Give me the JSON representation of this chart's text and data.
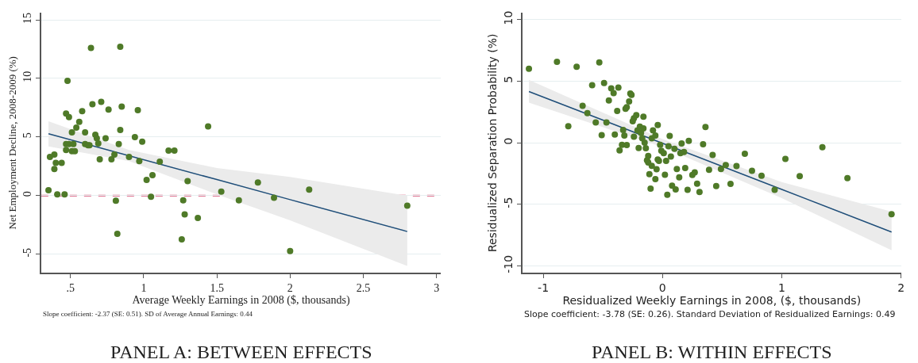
{
  "chart_data": [
    {
      "type": "scatter",
      "title": "PANEL A: BETWEEN EFFECTS",
      "xlabel": "Average Weekly Earnings in 2008 ($, thousands)",
      "ylabel": "Net Employment Decline, 2008-2009 (%)",
      "annotations": [
        "Slope coefficient: -2.37 (SE: 0.51). SD of Average Annual Earnings: 0.44"
      ],
      "xlim": [
        0.3,
        3.03
      ],
      "ylim": [
        -6.6,
        15.6
      ],
      "xticks": [
        {
          "value": 0.5,
          "label": ".5"
        },
        1,
        1.5,
        2,
        2.5,
        3
      ],
      "yticks": [
        -5,
        0,
        5,
        10,
        15
      ],
      "grid": "y",
      "marker": "circle",
      "ref_lines": [
        {
          "axis": "y",
          "value": 0,
          "color": "#d5476e",
          "line_style": "dashed"
        }
      ],
      "series": [
        {
          "color": "#4f7a28",
          "x": [
            0.35,
            0.36,
            0.39,
            0.39,
            0.4,
            0.44,
            0.41,
            0.46,
            0.48,
            0.47,
            0.49,
            0.47,
            0.47,
            0.49,
            0.51,
            0.52,
            0.53,
            0.51,
            0.54,
            0.56,
            0.58,
            0.6,
            0.6,
            0.62,
            0.63,
            0.64,
            0.65,
            0.67,
            0.68,
            0.69,
            0.7,
            0.71,
            0.74,
            0.76,
            0.78,
            0.8,
            0.81,
            0.82,
            0.83,
            0.84,
            0.84,
            0.85,
            0.9,
            0.94,
            0.96,
            0.97,
            0.99,
            1.02,
            1.05,
            1.06,
            1.11,
            1.17,
            1.21,
            1.27,
            1.26,
            1.28,
            1.3,
            1.37,
            1.44,
            1.53,
            1.65,
            1.78,
            1.89,
            2.0,
            2.13,
            2.8
          ],
          "values": [
            0.47,
            3.3,
            3.5,
            2.27,
            2.8,
            2.8,
            0.1,
            0.1,
            9.8,
            7.0,
            6.7,
            4.4,
            3.9,
            4.4,
            3.8,
            4.4,
            3.8,
            5.4,
            5.8,
            6.3,
            7.2,
            5.4,
            4.4,
            4.3,
            4.3,
            12.6,
            7.8,
            5.2,
            4.9,
            4.45,
            3.1,
            8.0,
            4.9,
            7.35,
            3.1,
            3.5,
            -0.43,
            -3.26,
            4.4,
            5.6,
            12.7,
            7.6,
            3.3,
            5.0,
            7.3,
            2.95,
            4.6,
            1.35,
            -0.1,
            1.75,
            2.9,
            3.85,
            3.85,
            -0.4,
            -3.73,
            -1.6,
            1.24,
            -1.9,
            5.9,
            0.34,
            -0.4,
            1.12,
            -0.18,
            -4.72,
            0.52,
            -0.85
          ]
        },
        {
          "type": "line",
          "marker": "none",
          "color": "#1f4e79",
          "x": [
            0.35,
            0.9,
            1.5,
            2.0,
            2.8
          ],
          "values": [
            5.28,
            3.41,
            1.37,
            -0.34,
            -3.06
          ],
          "lower": [
            4.2,
            2.95,
            0.1,
            -2.1,
            -6.0
          ],
          "upper": [
            6.34,
            3.9,
            2.36,
            1.6,
            0.0
          ]
        }
      ]
    },
    {
      "type": "scatter",
      "title": "PANEL B: WITHIN EFFECTS",
      "xlabel": "Residualized Weekly Earnings in 2008, ($, thousands)",
      "ylabel": "Residualized Separation Probability (%)",
      "annotations": [
        "Slope coefficient: -3.78 (SE: 0.26). Standard Deviation of Residualized Earnings: 0.49"
      ],
      "xlim": [
        -1.175,
        2.0
      ],
      "ylim": [
        -10.58,
        10.55
      ],
      "xticks": [
        -1,
        0,
        1,
        2
      ],
      "yticks": [
        -10,
        -5,
        0,
        5,
        10
      ],
      "grid": "y",
      "marker": "circle",
      "series": [
        {
          "color": "#4f7a28",
          "x": [
            -1.12,
            -0.885,
            -0.72,
            -0.53,
            -0.79,
            -0.67,
            -0.63,
            -0.59,
            -0.56,
            -0.51,
            -0.49,
            -0.47,
            -0.45,
            -0.43,
            -0.41,
            -0.4,
            -0.38,
            -0.37,
            -0.36,
            -0.34,
            -0.33,
            -0.32,
            -0.31,
            -0.3,
            -0.3,
            -0.28,
            -0.27,
            -0.26,
            -0.24,
            -0.25,
            -0.24,
            -0.22,
            -0.21,
            -0.2,
            -0.19,
            -0.18,
            -0.17,
            -0.16,
            -0.16,
            -0.15,
            -0.14,
            -0.12,
            -0.13,
            -0.12,
            -0.11,
            -0.1,
            -0.09,
            -0.09,
            -0.08,
            -0.06,
            -0.06,
            -0.05,
            -0.04,
            -0.04,
            -0.03,
            -0.02,
            -0.01,
            0.01,
            0.02,
            0.03,
            0.04,
            0.05,
            0.06,
            0.07,
            0.08,
            0.1,
            0.11,
            0.12,
            0.14,
            0.15,
            0.16,
            0.18,
            0.19,
            0.21,
            0.22,
            0.25,
            0.27,
            0.29,
            0.31,
            0.34,
            0.36,
            0.39,
            0.42,
            0.45,
            0.49,
            0.53,
            0.57,
            0.62,
            0.69,
            0.75,
            0.83,
            0.94,
            1.03,
            1.15,
            1.34,
            1.55,
            1.92
          ],
          "values": [
            6.0,
            6.57,
            6.16,
            6.52,
            1.34,
            3.0,
            2.4,
            4.67,
            1.64,
            0.62,
            4.84,
            1.64,
            3.43,
            4.41,
            4.03,
            0.66,
            2.58,
            4.48,
            -0.62,
            -0.17,
            1.04,
            0.58,
            2.75,
            -0.19,
            2.88,
            3.35,
            3.99,
            3.88,
            0.49,
            1.75,
            1.98,
            2.24,
            1.0,
            -0.43,
            1.3,
            0.79,
            0.36,
            2.11,
            1.17,
            0.0,
            -0.45,
            -1.07,
            -1.43,
            -1.6,
            -2.56,
            -3.73,
            -1.88,
            0.36,
            1.0,
            0.58,
            -2.96,
            -2.15,
            1.43,
            -1.36,
            -1.47,
            -0.17,
            -0.66,
            -0.85,
            -2.6,
            -1.47,
            -4.22,
            -0.28,
            0.55,
            -1.13,
            -3.48,
            -0.49,
            -3.8,
            -2.13,
            -2.81,
            -0.85,
            -0.06,
            -0.75,
            -2.05,
            -3.82,
            0.15,
            -2.62,
            -2.41,
            -3.33,
            -4.0,
            -0.13,
            1.28,
            -2.2,
            -1.0,
            -3.52,
            -2.13,
            -1.81,
            -3.35,
            -1.9,
            -0.9,
            -2.28,
            -2.69,
            -3.82,
            -1.32,
            -2.71,
            -0.36,
            -2.88,
            -5.8
          ]
        },
        {
          "type": "line",
          "marker": "none",
          "color": "#1f4e79",
          "x": [
            -1.12,
            0,
            1,
            1.92
          ],
          "values": [
            4.16,
            -0.04,
            -3.79,
            -7.25
          ],
          "lower": [
            3.26,
            -0.35,
            -4.5,
            -8.74
          ],
          "upper": [
            5.1,
            0.3,
            -3.2,
            -5.6
          ]
        }
      ]
    }
  ]
}
